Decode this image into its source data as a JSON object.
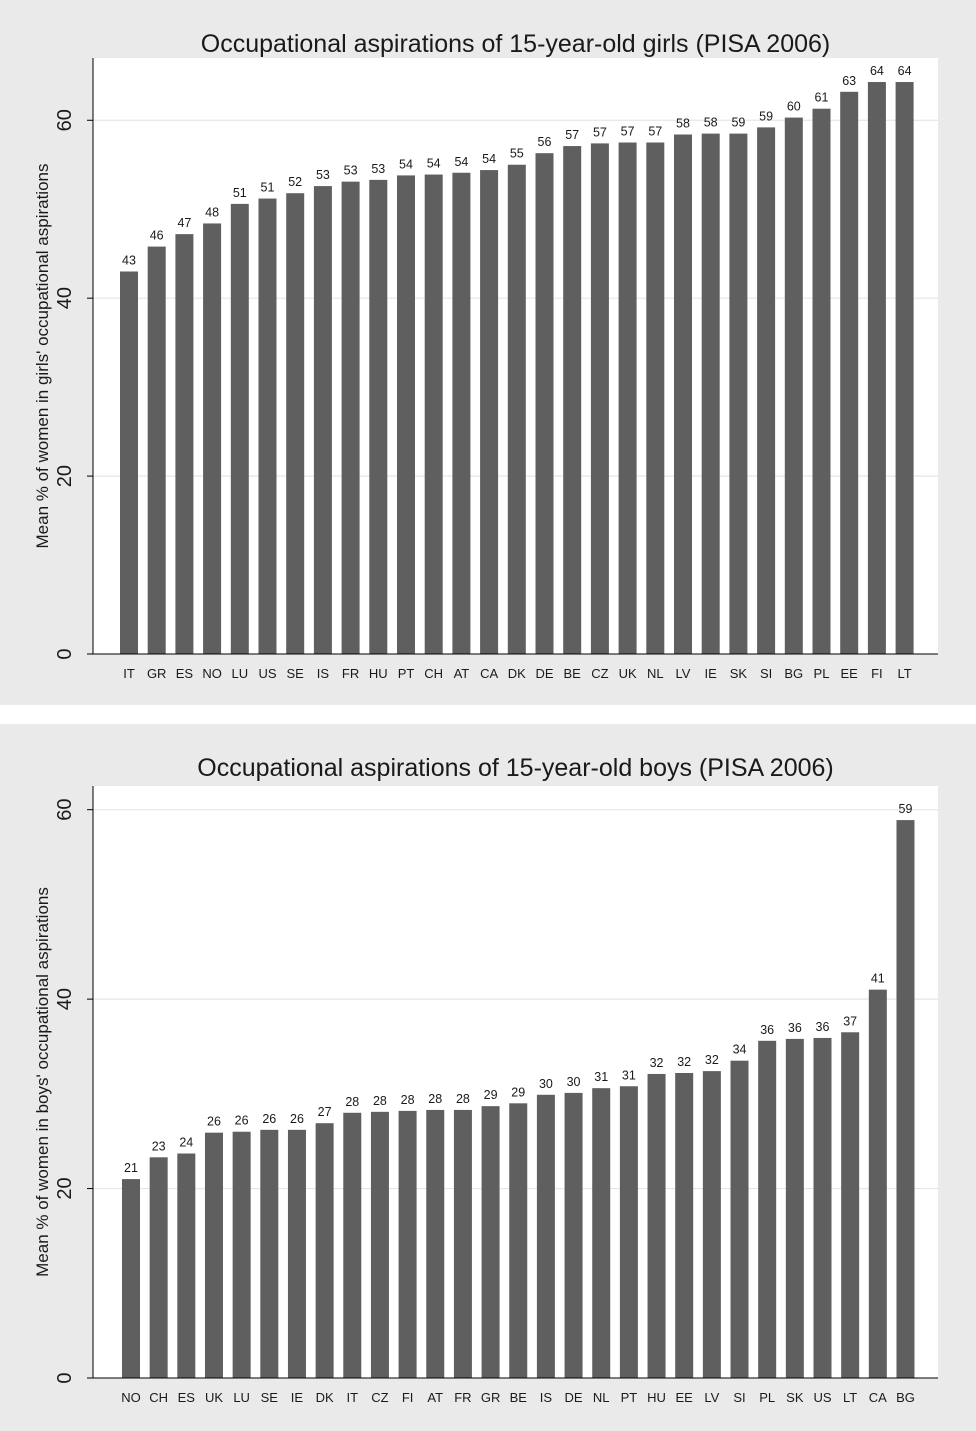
{
  "chart_data": [
    {
      "type": "bar",
      "title": "Occupational aspirations of 15-year-old girls (PISA 2006)",
      "xlabel": "",
      "ylabel": "Mean % of women in girls' occupational aspirations",
      "ylim": [
        0,
        67
      ],
      "yticks": [
        0,
        20,
        40,
        60
      ],
      "grid": true,
      "bar_color": "#5f5f5f",
      "categories": [
        "IT",
        "GR",
        "ES",
        "NO",
        "LU",
        "US",
        "SE",
        "IS",
        "FR",
        "HU",
        "PT",
        "CH",
        "AT",
        "CA",
        "DK",
        "DE",
        "BE",
        "CZ",
        "UK",
        "NL",
        "LV",
        "IE",
        "SK",
        "SI",
        "BG",
        "PL",
        "EE",
        "FI",
        "LT"
      ],
      "values": [
        43.0,
        45.8,
        47.2,
        48.4,
        50.6,
        51.2,
        51.8,
        52.6,
        53.1,
        53.3,
        53.8,
        53.9,
        54.1,
        54.4,
        55.0,
        56.3,
        57.1,
        57.4,
        57.5,
        57.5,
        58.4,
        58.5,
        58.5,
        59.2,
        60.3,
        61.3,
        63.2,
        64.3,
        64.3
      ],
      "data_labels": [
        "43",
        "46",
        "47",
        "48",
        "51",
        "51",
        "52",
        "53",
        "53",
        "53",
        "54",
        "54",
        "54",
        "54",
        "55",
        "56",
        "57",
        "57",
        "57",
        "57",
        "58",
        "58",
        "59",
        "59",
        "60",
        "61",
        "63",
        "64",
        "64"
      ]
    },
    {
      "type": "bar",
      "title": "Occupational aspirations of 15-year-old boys (PISA 2006)",
      "xlabel": "",
      "ylabel": "Mean % of women in boys' occupational aspirations",
      "ylim": [
        0,
        62.5
      ],
      "yticks": [
        0,
        20,
        40,
        60
      ],
      "grid": true,
      "bar_color": "#5f5f5f",
      "categories": [
        "NO",
        "CH",
        "ES",
        "UK",
        "LU",
        "SE",
        "IE",
        "DK",
        "IT",
        "CZ",
        "FI",
        "AT",
        "FR",
        "GR",
        "BE",
        "IS",
        "DE",
        "NL",
        "PT",
        "HU",
        "EE",
        "LV",
        "SI",
        "PL",
        "SK",
        "US",
        "LT",
        "CA",
        "BG"
      ],
      "values": [
        21.0,
        23.3,
        23.7,
        25.9,
        26.0,
        26.2,
        26.2,
        26.9,
        28.0,
        28.1,
        28.2,
        28.3,
        28.3,
        28.7,
        29.0,
        29.9,
        30.1,
        30.6,
        30.8,
        32.1,
        32.2,
        32.4,
        33.5,
        35.6,
        35.8,
        35.9,
        36.5,
        41.0,
        58.9
      ],
      "data_labels": [
        "21",
        "23",
        "24",
        "26",
        "26",
        "26",
        "26",
        "27",
        "28",
        "28",
        "28",
        "28",
        "28",
        "29",
        "29",
        "30",
        "30",
        "31",
        "31",
        "32",
        "32",
        "32",
        "34",
        "36",
        "36",
        "36",
        "37",
        "41",
        "59"
      ]
    }
  ]
}
